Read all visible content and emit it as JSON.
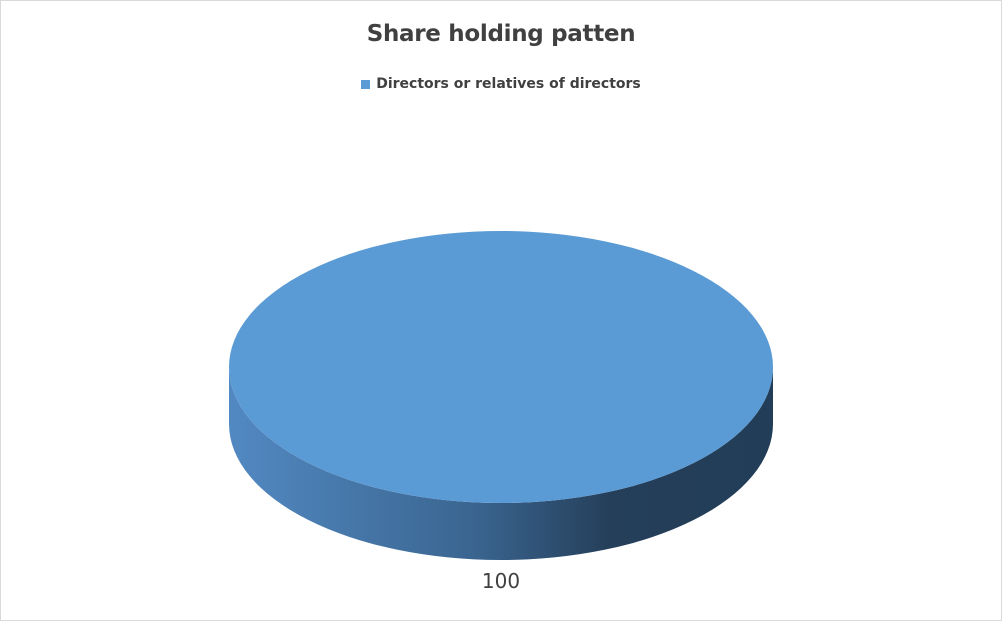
{
  "chart_data": {
    "type": "pie",
    "style": "3d",
    "title": "Share holding patten",
    "legend_position": "top",
    "categories": [
      "Directors or relatives of directors"
    ],
    "values": [
      100
    ],
    "data_labels": [
      "100"
    ],
    "colors": [
      "#5b9bd5"
    ]
  }
}
